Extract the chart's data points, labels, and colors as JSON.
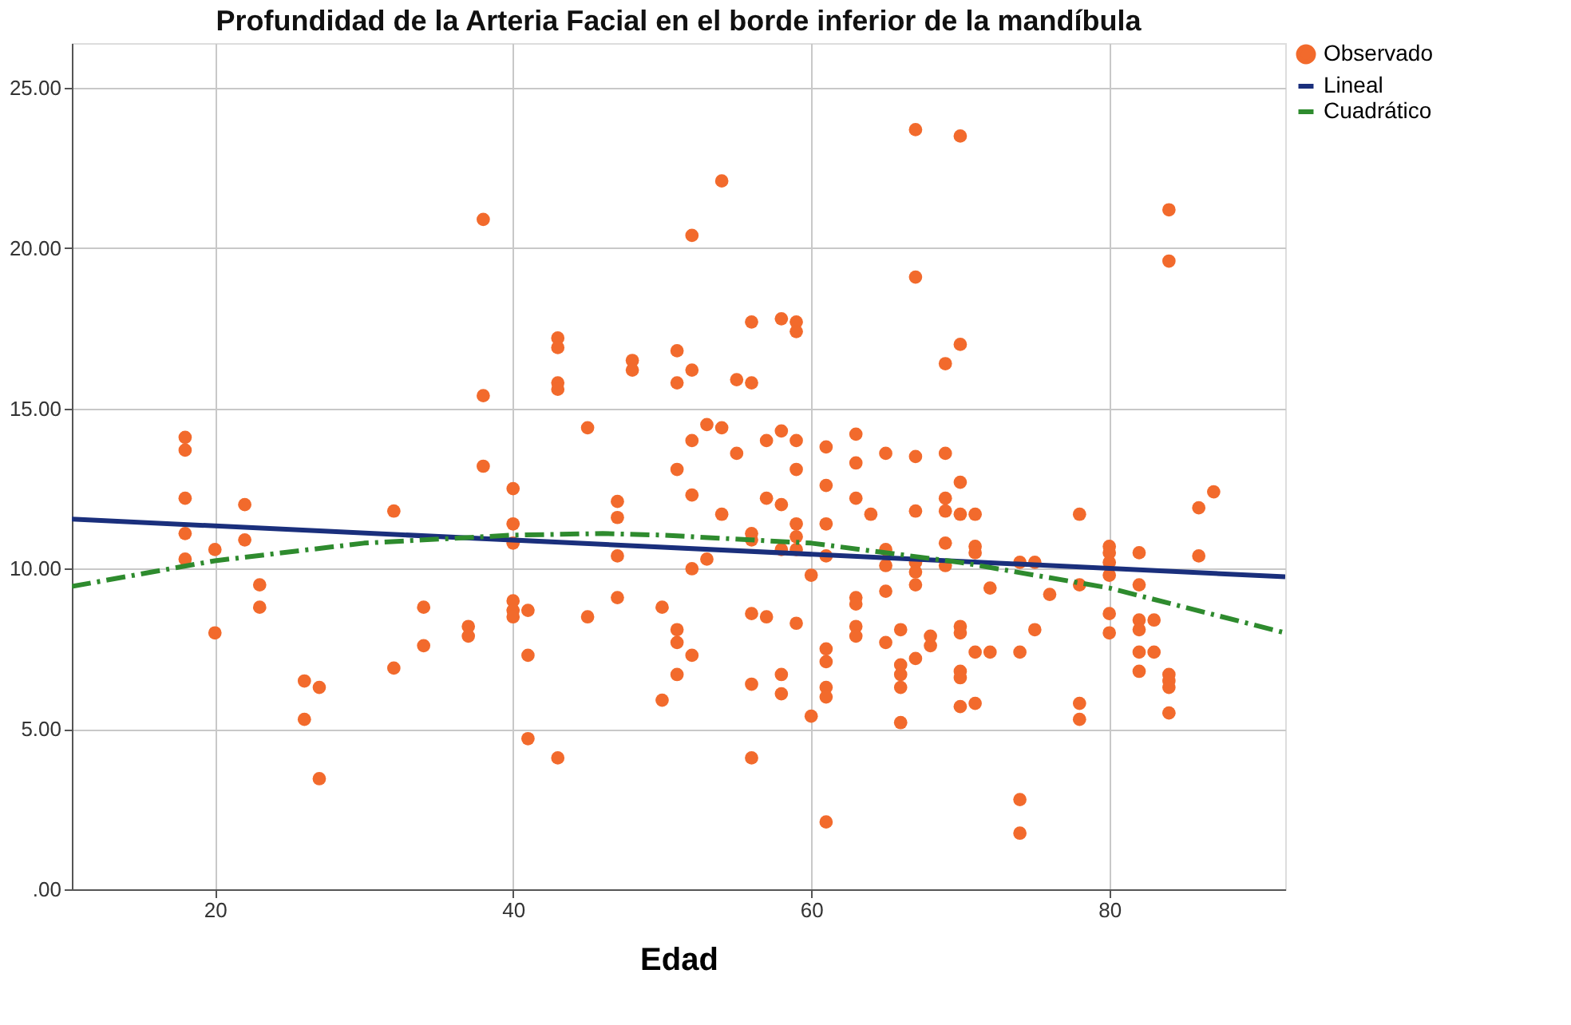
{
  "chart_data": {
    "type": "scatter",
    "title": "Profundidad de la Arteria Facial en el borde inferior de la mandíbula",
    "xlabel": "Edad",
    "xlim": [
      10.4,
      91.8
    ],
    "ylim": [
      0,
      26.4
    ],
    "xticks": [
      20,
      40,
      60,
      80
    ],
    "yticks": [
      {
        "value": 0,
        "label": ".00"
      },
      {
        "value": 5,
        "label": "5.00"
      },
      {
        "value": 10,
        "label": "10.00"
      },
      {
        "value": 15,
        "label": "15.00"
      },
      {
        "value": 20,
        "label": "20.00"
      },
      {
        "value": 25,
        "label": "25.00"
      }
    ],
    "grid": true,
    "legend": "top right",
    "series": [
      {
        "name": "Observado",
        "type": "scatter",
        "marker": "circle",
        "color": "#f26a2c",
        "x": [
          18,
          18,
          18,
          18,
          18,
          20,
          20,
          22,
          22,
          23,
          23,
          26,
          26,
          27,
          27,
          32,
          32,
          34,
          34,
          37,
          37,
          38,
          38,
          38,
          40,
          40,
          40,
          40,
          40,
          40,
          41,
          41,
          41,
          43,
          43,
          43,
          43,
          43,
          45,
          45,
          47,
          47,
          47,
          47,
          48,
          48,
          50,
          50,
          51,
          51,
          51,
          51,
          51,
          51,
          52,
          52,
          52,
          52,
          52,
          52,
          53,
          53,
          54,
          54,
          54,
          55,
          55,
          56,
          56,
          56,
          56,
          56,
          56,
          56,
          57,
          57,
          57,
          58,
          58,
          58,
          58,
          58,
          58,
          59,
          59,
          59,
          59,
          59,
          59,
          59,
          59,
          60,
          60,
          61,
          61,
          61,
          61,
          61,
          61,
          61,
          61,
          61,
          63,
          63,
          63,
          63,
          63,
          63,
          63,
          64,
          65,
          65,
          65,
          65,
          65,
          66,
          66,
          66,
          66,
          66,
          67,
          67,
          67,
          67,
          67,
          67,
          67,
          67,
          68,
          68,
          69,
          69,
          69,
          69,
          69,
          69,
          70,
          70,
          70,
          70,
          70,
          70,
          70,
          70,
          70,
          71,
          71,
          71,
          71,
          71,
          72,
          72,
          74,
          74,
          74,
          74,
          75,
          75,
          76,
          78,
          78,
          78,
          78,
          80,
          80,
          80,
          80,
          80,
          80,
          82,
          82,
          82,
          82,
          82,
          82,
          83,
          83,
          84,
          84,
          84,
          84,
          84,
          84,
          86,
          86,
          87
        ],
        "values": [
          14.1,
          13.7,
          12.2,
          11.1,
          10.3,
          10.6,
          8.0,
          12.0,
          10.9,
          9.5,
          8.8,
          6.5,
          5.3,
          6.3,
          3.45,
          11.8,
          6.9,
          8.8,
          7.6,
          8.2,
          7.9,
          20.9,
          15.4,
          13.2,
          12.5,
          11.4,
          10.8,
          9.0,
          8.7,
          8.5,
          8.7,
          7.3,
          4.7,
          17.2,
          16.9,
          15.8,
          15.6,
          4.1,
          14.4,
          8.5,
          12.1,
          11.6,
          10.4,
          9.1,
          16.5,
          16.2,
          8.8,
          5.9,
          16.8,
          15.8,
          13.1,
          8.1,
          7.7,
          6.7,
          20.4,
          16.2,
          14.0,
          12.3,
          10.0,
          7.3,
          14.5,
          10.3,
          22.1,
          14.4,
          11.7,
          15.9,
          13.6,
          17.7,
          15.8,
          11.1,
          10.9,
          8.6,
          6.4,
          4.1,
          14.0,
          12.2,
          8.5,
          17.8,
          14.3,
          12.0,
          10.6,
          6.7,
          6.1,
          17.7,
          17.4,
          14.0,
          13.1,
          11.4,
          11.0,
          10.6,
          8.3,
          9.8,
          5.4,
          13.8,
          12.6,
          11.4,
          10.4,
          7.5,
          7.1,
          6.3,
          6.0,
          2.1,
          14.2,
          13.3,
          12.2,
          9.1,
          8.9,
          8.2,
          7.9,
          11.7,
          13.6,
          10.6,
          10.1,
          9.3,
          7.7,
          8.1,
          7.0,
          6.7,
          6.3,
          5.2,
          23.7,
          19.1,
          13.5,
          11.8,
          10.2,
          9.9,
          9.5,
          7.2,
          7.9,
          7.6,
          16.4,
          13.6,
          12.2,
          11.8,
          10.8,
          10.1,
          23.5,
          17.0,
          12.7,
          11.7,
          8.2,
          8.0,
          6.8,
          6.6,
          5.7,
          11.7,
          10.7,
          10.5,
          7.4,
          5.8,
          9.4,
          7.4,
          10.2,
          7.4,
          2.8,
          1.75,
          10.2,
          8.1,
          9.2,
          11.7,
          9.5,
          5.8,
          5.3,
          10.7,
          10.5,
          10.2,
          9.8,
          8.6,
          8.0,
          10.5,
          9.5,
          8.4,
          8.1,
          7.4,
          6.8,
          8.4,
          7.4,
          21.2,
          19.6,
          6.7,
          6.5,
          6.3,
          5.5,
          11.9,
          10.4,
          12.4
        ]
      },
      {
        "name": "Lineal",
        "type": "line",
        "marker": "none",
        "line_style": "solid",
        "color": "#1a2f7c",
        "x": [
          10.4,
          91.8
        ],
        "values": [
          11.55,
          9.75
        ]
      },
      {
        "name": "Cuadrático",
        "type": "line",
        "marker": "none",
        "line_style": "dashed",
        "color": "#2e8b2e",
        "x": [
          10.4,
          20,
          30,
          40,
          46,
          50,
          60,
          70,
          80,
          91.8
        ],
        "values": [
          9.45,
          10.25,
          10.8,
          11.05,
          11.1,
          11.05,
          10.8,
          10.2,
          9.4,
          8.0
        ]
      }
    ]
  }
}
